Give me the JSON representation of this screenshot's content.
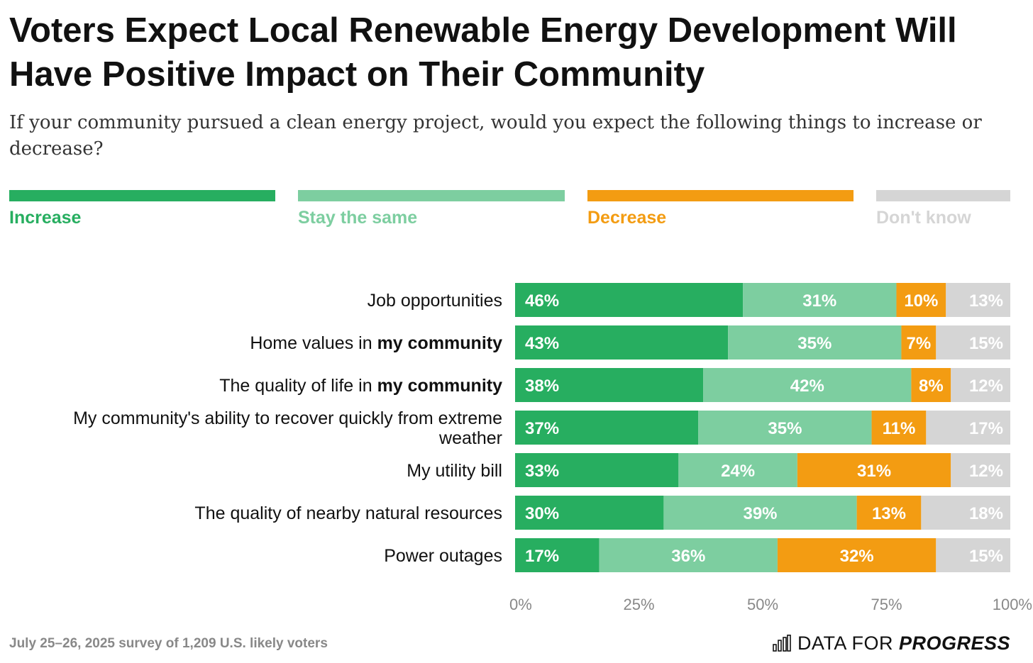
{
  "title": "Voters Expect Local Renewable Energy Development Will Have Positive Impact on Their Community",
  "subtitle": "If your community pursued a clean energy project, would you expect the following things to increase or decrease?",
  "colors": {
    "increase": "#27ae60",
    "stay": "#7dcea0",
    "decrease": "#f39c12",
    "dont_know": "#d5d5d5"
  },
  "legend": [
    {
      "label": "Increase",
      "color": "#27ae60"
    },
    {
      "label": "Stay the same",
      "color": "#7dcea0"
    },
    {
      "label": "Decrease",
      "color": "#f39c12"
    },
    {
      "label": "Don't know",
      "color": "#d5d5d5"
    }
  ],
  "chart_data": {
    "type": "bar",
    "orientation": "horizontal",
    "stacked": true,
    "categories": [
      [
        {
          "text": "Job opportunities",
          "bold": false
        }
      ],
      [
        {
          "text": "Home values in ",
          "bold": false
        },
        {
          "text": "my community",
          "bold": true
        }
      ],
      [
        {
          "text": "The quality of life in ",
          "bold": false
        },
        {
          "text": "my community",
          "bold": true
        }
      ],
      [
        {
          "text": "My community's ability to recover quickly from extreme",
          "bold": false
        },
        {
          "text": "weather",
          "bold": false,
          "newline": true
        }
      ],
      [
        {
          "text": "My utility bill",
          "bold": false
        }
      ],
      [
        {
          "text": "The quality of nearby natural resources",
          "bold": false
        }
      ],
      [
        {
          "text": "Power outages",
          "bold": false
        }
      ]
    ],
    "series": [
      {
        "name": "Increase",
        "color": "#27ae60",
        "label_color": "#ffffff",
        "values": [
          46,
          43,
          38,
          37,
          33,
          30,
          17
        ]
      },
      {
        "name": "Stay the same",
        "color": "#7dcea0",
        "label_color": "#ffffff",
        "values": [
          31,
          35,
          42,
          35,
          24,
          39,
          36
        ]
      },
      {
        "name": "Decrease",
        "color": "#f39c12",
        "label_color": "#ffffff",
        "values": [
          10,
          7,
          8,
          11,
          31,
          13,
          32
        ]
      },
      {
        "name": "Don't know",
        "color": "#d5d5d5",
        "label_color": "#ffffff",
        "values": [
          13,
          15,
          12,
          17,
          12,
          18,
          15
        ]
      }
    ],
    "x_ticks": [
      "0%",
      "25%",
      "50%",
      "75%",
      "100%"
    ],
    "xlim": [
      0,
      100
    ],
    "grid": false,
    "legend_position": "top"
  },
  "footer": {
    "note": "July 25–26, 2025 survey of 1,209 U.S. likely voters",
    "brand_prefix": "DATA FOR ",
    "brand_bold": "PROGRESS"
  }
}
